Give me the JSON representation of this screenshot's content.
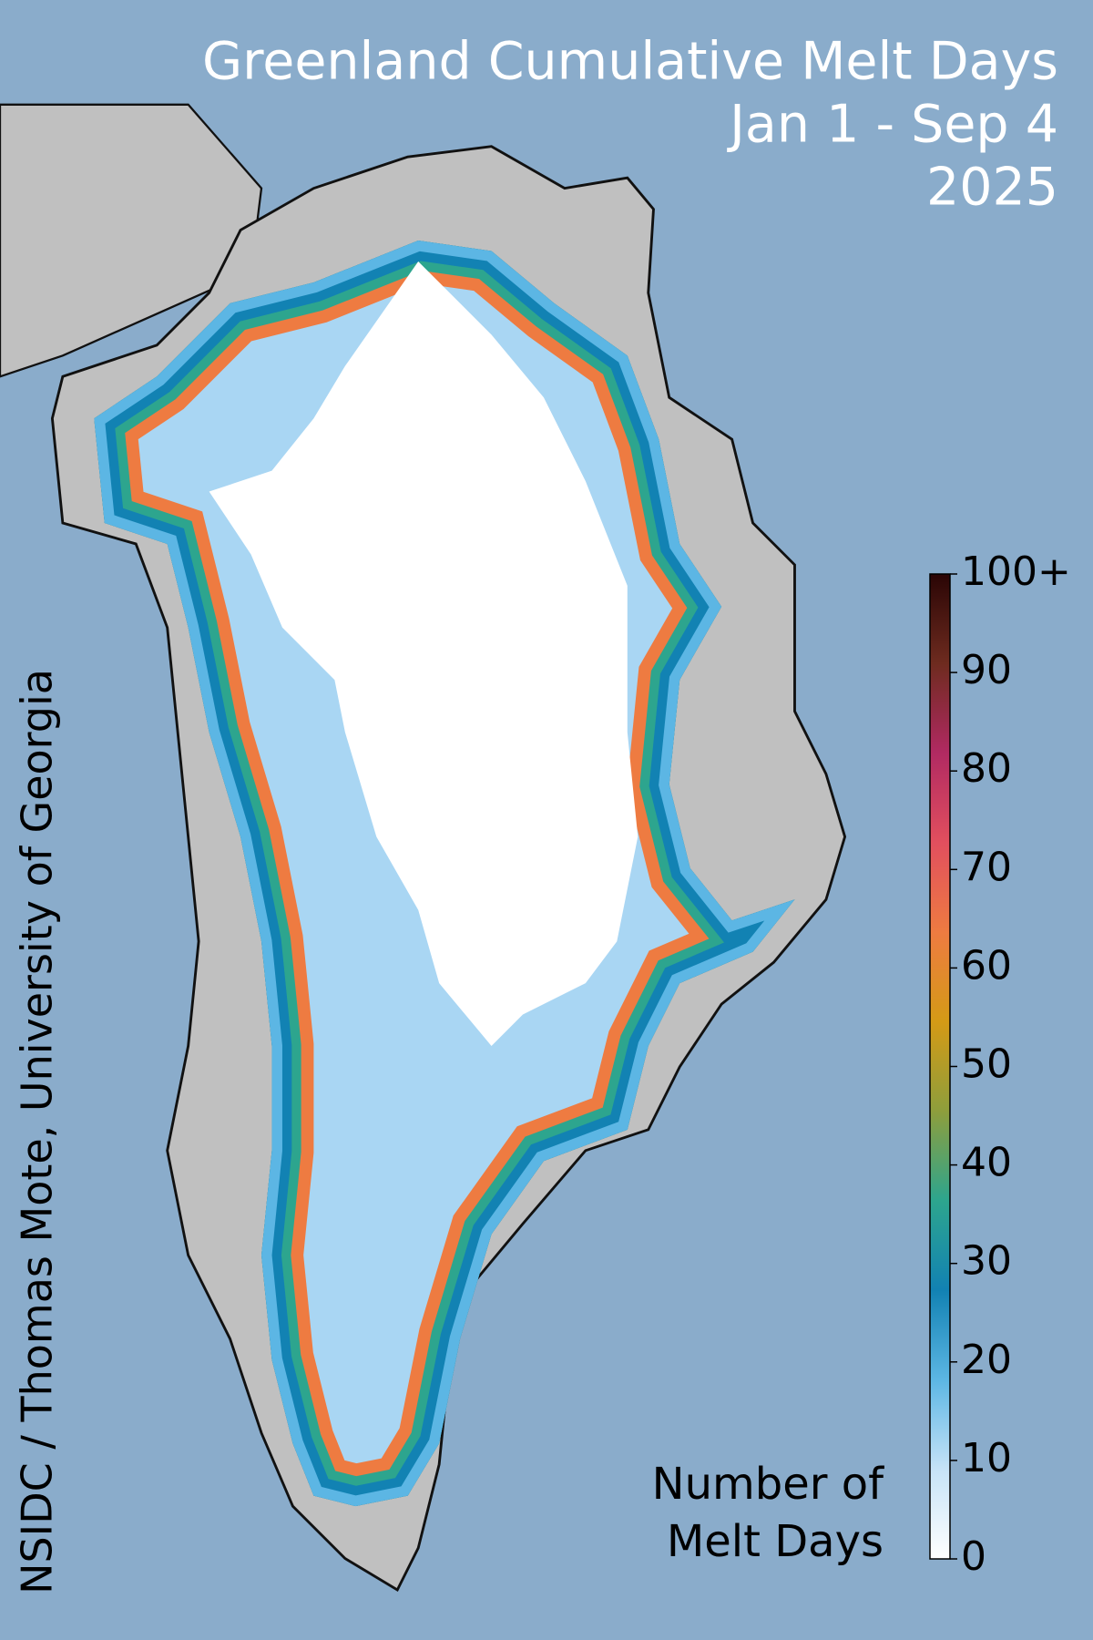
{
  "map": {
    "title": [
      "Greenland Cumulative Melt Days",
      "Jan 1 - Sep 4",
      "2025"
    ],
    "credit": "NSIDC / Thomas Mote, University of Georgia",
    "colorbar": {
      "label": [
        "Number of",
        "Melt Days"
      ],
      "range": [
        0,
        100
      ],
      "ticks": [
        0,
        10,
        20,
        30,
        40,
        50,
        60,
        70,
        80,
        90,
        {
          "value": 100,
          "label": "100+"
        }
      ],
      "colors": [
        "#ffffff",
        "#c6e3f7",
        "#5cb6e4",
        "#1282b3",
        "#2da58e",
        "#8e9e3c",
        "#d49a16",
        "#ee7b41",
        "#e24f5e",
        "#b12a62",
        "#6e2b1f",
        "#2a0505"
      ]
    }
  }
}
